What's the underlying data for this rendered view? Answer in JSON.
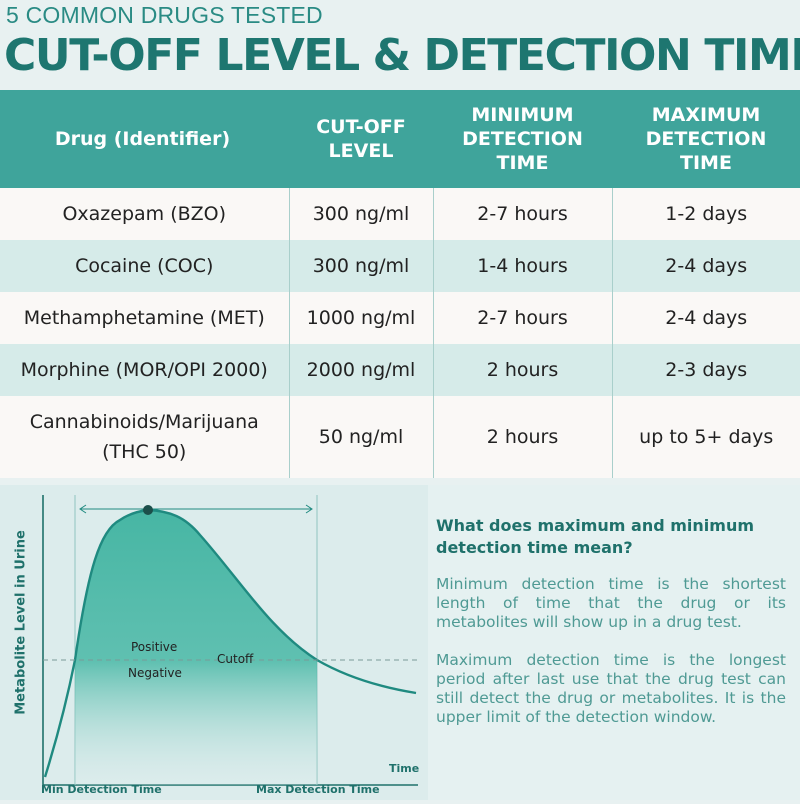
{
  "header": {
    "kicker": "5 COMMON DRUGS TESTED",
    "title": "CUT-OFF LEVEL & DETECTION TIME"
  },
  "table": {
    "headers": {
      "drug": "Drug (Identifier)",
      "cutoff_line1": "CUT-OFF",
      "cutoff_line2": "LEVEL",
      "min_line1": "MINIMUM",
      "min_line2": "DETECTION",
      "min_line3": "TIME",
      "max_line1": "MAXIMUM",
      "max_line2": "DETECTION",
      "max_line3": "TIME"
    },
    "rows": [
      {
        "drug": "Oxazepam (BZO)",
        "cutoff": "300 ng/ml",
        "min": "2-7 hours",
        "max": "1-2 days"
      },
      {
        "drug": "Cocaine (COC)",
        "cutoff": "300 ng/ml",
        "min": "1-4 hours",
        "max": "2-4 days"
      },
      {
        "drug": "Methamphetamine (MET)",
        "cutoff": "1000 ng/ml",
        "min": "2-7 hours",
        "max": "2-4 days"
      },
      {
        "drug": "Morphine (MOR/OPI 2000)",
        "cutoff": "2000 ng/ml",
        "min": "2 hours",
        "max": "2-3 days"
      },
      {
        "drug_line1": "Cannabinoids/Marijuana",
        "drug_line2": "(THC 50)",
        "cutoff": "50 ng/ml",
        "min": "2 hours",
        "max": "up to 5+ days"
      }
    ]
  },
  "graph": {
    "y_label": "Metabolite Level in Urine",
    "x_label": "Time",
    "positive": "Positive",
    "negative": "Negative",
    "cutoff": "Cutoff",
    "min_time": "Min Detection Time",
    "max_time": "Max Detection Time",
    "colors": {
      "accent": "#1f8a80",
      "fill": "#3fb3a0"
    }
  },
  "explanation": {
    "question": "What does maximum and minimum detection time mean?",
    "min_definition": "Minimum detection time is the shortest length of time that the drug or its metabolites will show up in a drug test.",
    "max_definition": "Maximum detection time is the longest period after last use that the drug test can still detect the drug or metabolites. It is the upper limit of the detection window."
  },
  "colors": {
    "header_bg": "#3fa49b",
    "title": "#1e7670",
    "row_light": "#faf8f6",
    "row_tint": "#d6ebe9"
  }
}
